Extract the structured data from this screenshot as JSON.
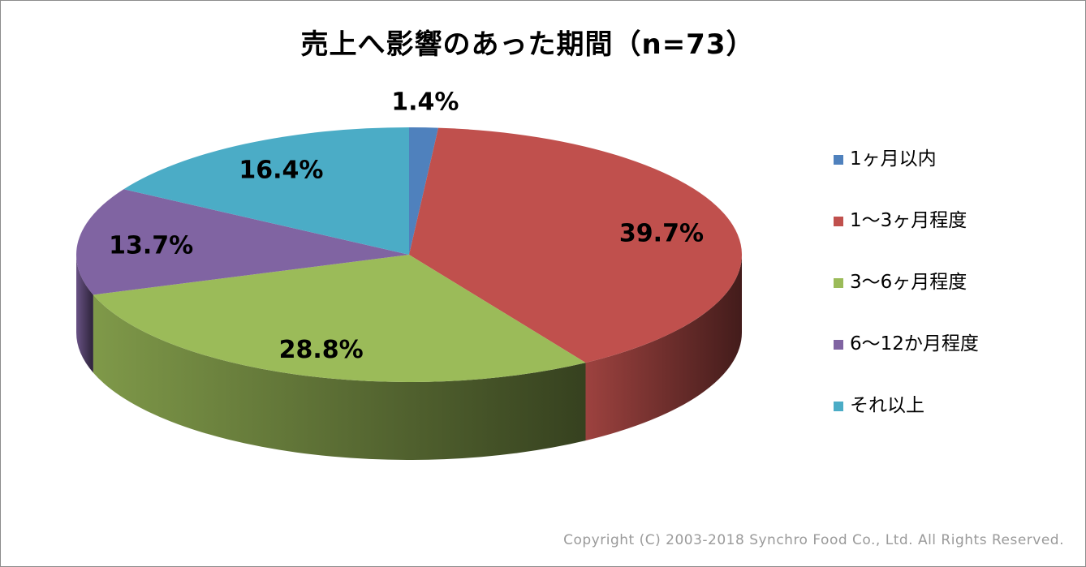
{
  "chart_data": {
    "type": "pie",
    "title": "売上へ影響のあった期間（n=73）",
    "slices": [
      {
        "label": "1ヶ月以内",
        "value": 1.4,
        "display": "1.4%",
        "color": "#4F81BD"
      },
      {
        "label": "1～3ヶ月程度",
        "value": 39.7,
        "display": "39.7%",
        "color": "#C0504D"
      },
      {
        "label": "3～6ヶ月程度",
        "value": 28.8,
        "display": "28.8%",
        "color": "#9BBB59"
      },
      {
        "label": "6～12か月程度",
        "value": 13.7,
        "display": "13.7%",
        "color": "#8064A2"
      },
      {
        "label": "それ以上",
        "value": 16.4,
        "display": "16.4%",
        "color": "#4BACC6"
      }
    ],
    "legend_position": "right",
    "style": "3d"
  },
  "footer": {
    "copyright": "Copyright (C) 2003-2018  Synchro Food Co., Ltd. All Rights Reserved."
  }
}
